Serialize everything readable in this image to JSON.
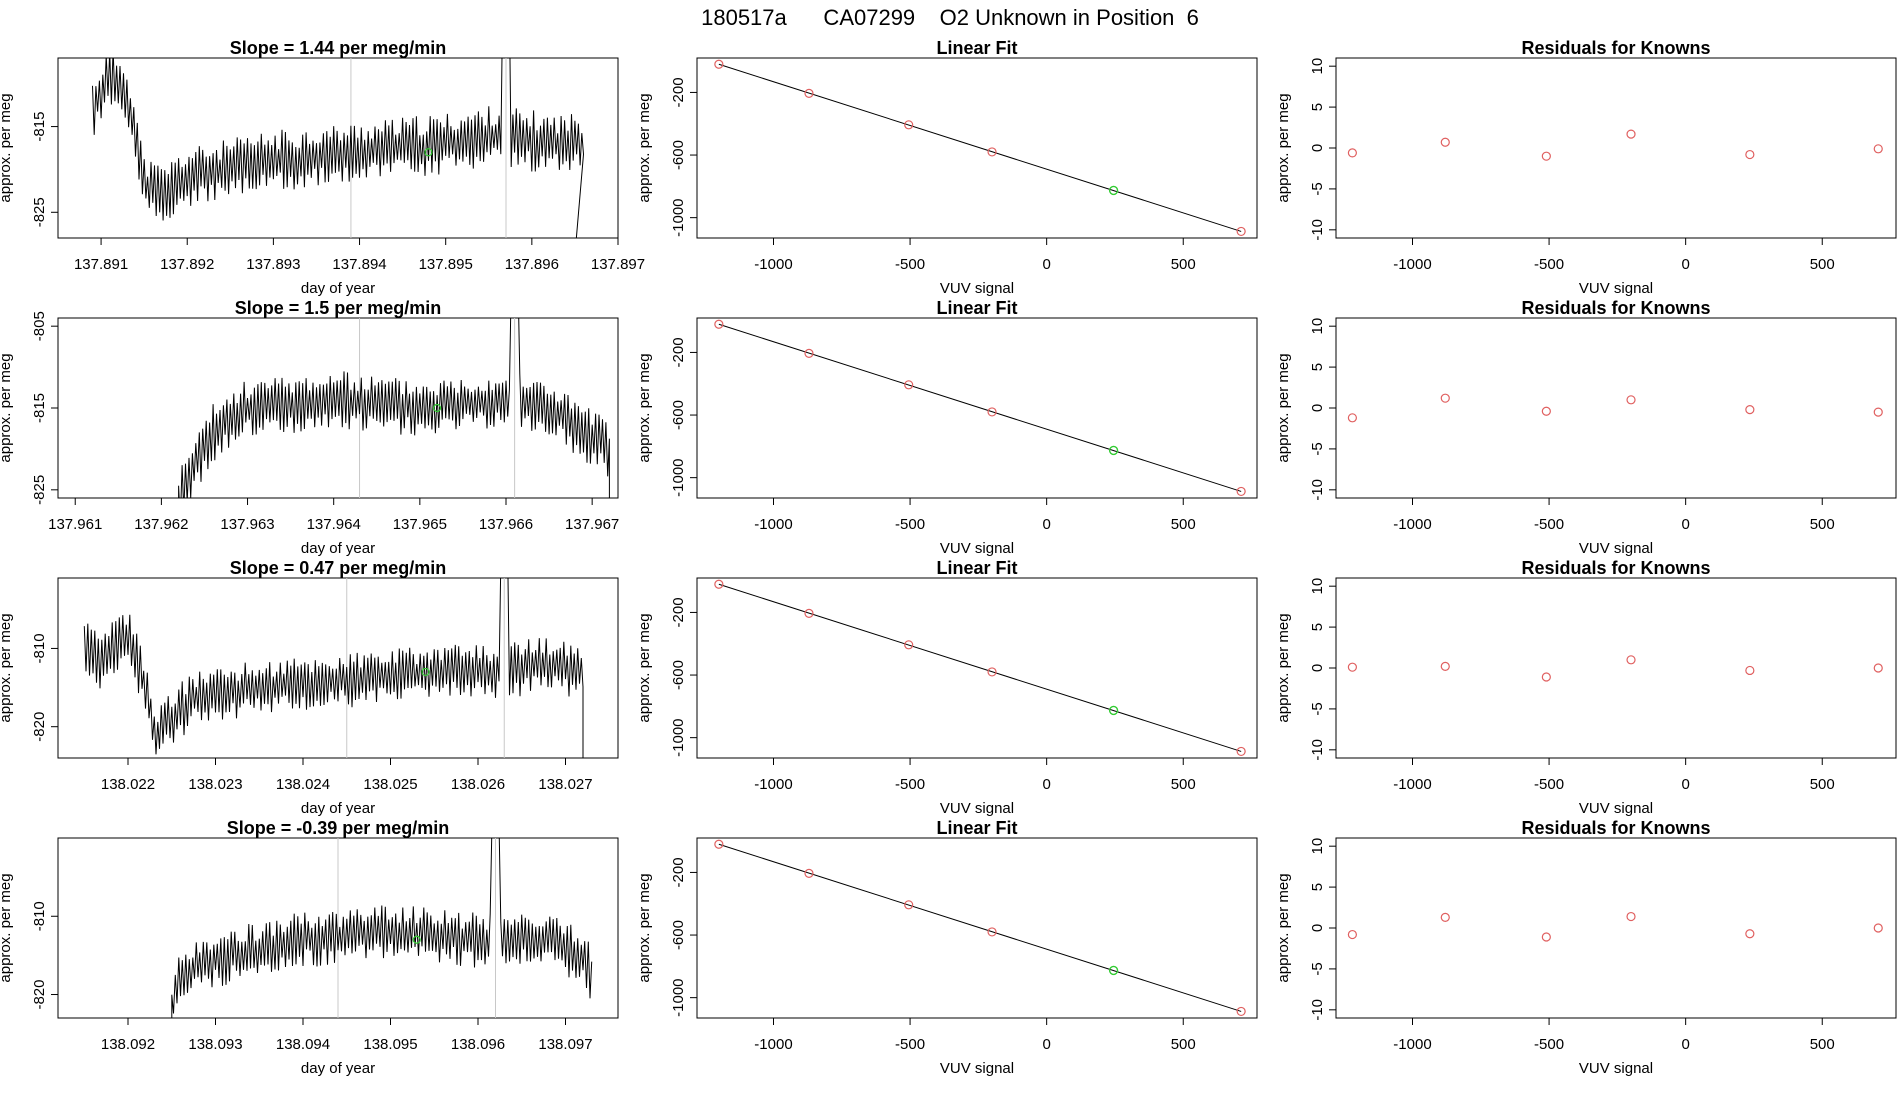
{
  "page_title": "180517a      CA07299    O2 Unknown in Position  6",
  "colors": {
    "trace": "#000000",
    "vline": "#c8c8c8",
    "known_point": "#e06060",
    "unknown_point": "#33cc33",
    "fit_line": "#000000"
  },
  "chart_data": [
    {
      "type": "line",
      "panel": "time-series",
      "title": "Slope =  1.44  per meg/min",
      "xlabel": "day of year",
      "ylabel": "approx. per meg",
      "xlim": [
        137.8905,
        137.897
      ],
      "ylim": [
        -828,
        -807
      ],
      "xticks": [
        "137.891",
        "137.892",
        "137.893",
        "137.894",
        "137.895",
        "137.896",
        "137.897"
      ],
      "yticks": [
        "-815",
        "-825"
      ],
      "vlines": [
        137.8939,
        137.8957
      ],
      "peak": {
        "x": 137.8957,
        "y": -801
      },
      "gap_segment": [
        [
          137.8951,
          -818
        ],
        [
          137.896,
          -819
        ],
        [
          137.8965,
          -819
        ]
      ],
      "drop": {
        "x": 137.8965,
        "to": -830
      },
      "unknown_point": {
        "x": 137.8948,
        "y": -818
      },
      "trace_shape": {
        "start": 137.8909,
        "end": 137.8966,
        "seed": 11,
        "segments": [
          [
            137.8909,
            -813
          ],
          [
            137.8911,
            -809
          ],
          [
            137.8913,
            -811
          ],
          [
            137.8914,
            -816
          ],
          [
            137.8915,
            -822
          ],
          [
            137.8917,
            -823
          ],
          [
            137.892,
            -821
          ],
          [
            137.893,
            -819
          ],
          [
            137.894,
            -818
          ],
          [
            137.895,
            -817
          ],
          [
            137.8956,
            -816
          ],
          [
            137.8962,
            -817
          ],
          [
            137.8965,
            -817
          ]
        ]
      }
    },
    {
      "type": "line",
      "panel": "time-series",
      "title": "Slope =  1.5  per meg/min",
      "xlabel": "day of year",
      "ylabel": "approx. per meg",
      "xlim": [
        137.9608,
        137.9673
      ],
      "ylim": [
        -826,
        -804
      ],
      "xticks": [
        "137.961",
        "137.962",
        "137.963",
        "137.964",
        "137.965",
        "137.966",
        "137.967"
      ],
      "yticks": [
        "-805",
        "-815",
        "-825"
      ],
      "vlines": [
        137.9643,
        137.9661
      ],
      "peak": {
        "x": 137.9661,
        "y": -800
      },
      "drop": {
        "x": 137.9672,
        "to": -830
      },
      "rise_from": {
        "x": 137.9622,
        "y": -828
      },
      "unknown_point": {
        "x": 137.9652,
        "y": -815
      },
      "trace_shape": {
        "start": 137.9622,
        "end": 137.9672,
        "seed": 23,
        "segments": [
          [
            137.9622,
            -826
          ],
          [
            137.9624,
            -822
          ],
          [
            137.9626,
            -818
          ],
          [
            137.963,
            -815
          ],
          [
            137.964,
            -814
          ],
          [
            137.965,
            -815
          ],
          [
            137.966,
            -814
          ],
          [
            137.9665,
            -815
          ],
          [
            137.9669,
            -818
          ],
          [
            137.9672,
            -820
          ]
        ]
      }
    },
    {
      "type": "line",
      "panel": "time-series",
      "title": "Slope =  0.47  per meg/min",
      "xlabel": "day of year",
      "ylabel": "approx. per meg",
      "xlim": [
        138.0212,
        138.0276
      ],
      "ylim": [
        -824,
        -801
      ],
      "xticks": [
        "138.022",
        "138.023",
        "138.024",
        "138.025",
        "138.026",
        "138.027"
      ],
      "yticks": [
        "-810",
        "-820"
      ],
      "vlines": [
        138.0245,
        138.0263
      ],
      "peak": {
        "x": 138.0263,
        "y": -799
      },
      "drop": {
        "x": 138.0272,
        "to": -828
      },
      "unknown_point": {
        "x": 138.0254,
        "y": -813
      },
      "trace_shape": {
        "start": 138.0215,
        "end": 138.0272,
        "seed": 37,
        "segments": [
          [
            138.0215,
            -810
          ],
          [
            138.0217,
            -812
          ],
          [
            138.0219,
            -809
          ],
          [
            138.022,
            -808
          ],
          [
            138.0222,
            -815
          ],
          [
            138.0223,
            -821
          ],
          [
            138.0225,
            -819
          ],
          [
            138.0228,
            -816
          ],
          [
            138.0235,
            -815
          ],
          [
            138.0245,
            -814
          ],
          [
            138.0255,
            -813
          ],
          [
            138.0262,
            -813
          ],
          [
            138.0268,
            -812
          ],
          [
            138.0271,
            -813
          ]
        ]
      }
    },
    {
      "type": "line",
      "panel": "time-series",
      "title": "Slope =  -0.39  per meg/min",
      "xlabel": "day of year",
      "ylabel": "approx. per meg",
      "xlim": [
        138.0912,
        138.0976
      ],
      "ylim": [
        -823,
        -800
      ],
      "xticks": [
        "138.092",
        "138.093",
        "138.094",
        "138.095",
        "138.096",
        "138.097"
      ],
      "yticks": [
        "-810",
        "-820"
      ],
      "vlines": [
        138.0944,
        138.0962
      ],
      "peak": {
        "x": 138.0962,
        "y": -798
      },
      "rise_from": {
        "x": 138.0925,
        "y": -826
      },
      "unknown_point": {
        "x": 138.0953,
        "y": -813
      },
      "trace_shape": {
        "start": 138.0925,
        "end": 138.0973,
        "seed": 53,
        "segments": [
          [
            138.0925,
            -822
          ],
          [
            138.0926,
            -818
          ],
          [
            138.0928,
            -816
          ],
          [
            138.0932,
            -815
          ],
          [
            138.094,
            -813
          ],
          [
            138.095,
            -812
          ],
          [
            138.096,
            -813
          ],
          [
            138.0968,
            -813
          ],
          [
            138.0972,
            -815
          ],
          [
            138.0973,
            -818
          ]
        ]
      }
    },
    {
      "type": "scatter",
      "panel": "linear-fit",
      "title": "Linear Fit",
      "xlabel": "VUV signal",
      "ylabel": "approx. per meg",
      "xlim": [
        -1280,
        770
      ],
      "ylim": [
        -1130,
        20
      ],
      "xticks": [
        -1000,
        -500,
        0,
        500
      ],
      "yticks": [
        -200,
        -600,
        -1000
      ],
      "fit": {
        "x1": -1200,
        "y1": -20,
        "x2": 712,
        "y2": -1088
      },
      "knowns": [
        [
          -1200,
          -20
        ],
        [
          -870,
          -206
        ],
        [
          -505,
          -407
        ],
        [
          -200,
          -580
        ],
        [
          712,
          -1088
        ]
      ],
      "unknown": [
        [
          245,
          -826
        ]
      ]
    },
    {
      "type": "scatter",
      "panel": "linear-fit",
      "title": "Linear Fit",
      "xlabel": "VUV signal",
      "ylabel": "approx. per meg",
      "xlim": [
        -1280,
        770
      ],
      "ylim": [
        -1130,
        20
      ],
      "xticks": [
        -1000,
        -500,
        0,
        500
      ],
      "yticks": [
        -200,
        -600,
        -1000
      ],
      "fit": {
        "x1": -1200,
        "y1": -20,
        "x2": 712,
        "y2": -1088
      },
      "knowns": [
        [
          -1200,
          -20
        ],
        [
          -870,
          -206
        ],
        [
          -505,
          -407
        ],
        [
          -200,
          -580
        ],
        [
          712,
          -1088
        ]
      ],
      "unknown": [
        [
          245,
          -826
        ]
      ]
    },
    {
      "type": "scatter",
      "panel": "linear-fit",
      "title": "Linear Fit",
      "xlabel": "VUV signal",
      "ylabel": "approx. per meg",
      "xlim": [
        -1280,
        770
      ],
      "ylim": [
        -1130,
        20
      ],
      "xticks": [
        -1000,
        -500,
        0,
        500
      ],
      "yticks": [
        -200,
        -600,
        -1000
      ],
      "fit": {
        "x1": -1200,
        "y1": -20,
        "x2": 712,
        "y2": -1088
      },
      "knowns": [
        [
          -1200,
          -20
        ],
        [
          -870,
          -206
        ],
        [
          -505,
          -407
        ],
        [
          -200,
          -580
        ],
        [
          712,
          -1088
        ]
      ],
      "unknown": [
        [
          245,
          -826
        ]
      ]
    },
    {
      "type": "scatter",
      "panel": "linear-fit",
      "title": "Linear Fit",
      "xlabel": "VUV signal",
      "ylabel": "approx. per meg",
      "xlim": [
        -1280,
        770
      ],
      "ylim": [
        -1130,
        20
      ],
      "xticks": [
        -1000,
        -500,
        0,
        500
      ],
      "yticks": [
        -200,
        -600,
        -1000
      ],
      "fit": {
        "x1": -1200,
        "y1": -20,
        "x2": 712,
        "y2": -1088
      },
      "knowns": [
        [
          -1200,
          -20
        ],
        [
          -870,
          -206
        ],
        [
          -505,
          -407
        ],
        [
          -200,
          -580
        ],
        [
          712,
          -1088
        ]
      ],
      "unknown": [
        [
          245,
          -826
        ]
      ]
    },
    {
      "type": "scatter",
      "panel": "residuals",
      "title": "Residuals for Knowns",
      "xlabel": "VUV signal",
      "ylabel": "approx. per meg",
      "xlim": [
        -1280,
        770
      ],
      "ylim": [
        -11,
        11
      ],
      "xticks": [
        -1000,
        -500,
        0,
        500
      ],
      "yticks": [
        10,
        5,
        0,
        -5,
        -10
      ],
      "points": [
        [
          -1220,
          -0.6
        ],
        [
          -880,
          0.7
        ],
        [
          -510,
          -1.0
        ],
        [
          -200,
          1.7
        ],
        [
          235,
          -0.8
        ],
        [
          705,
          -0.1
        ]
      ]
    },
    {
      "type": "scatter",
      "panel": "residuals",
      "title": "Residuals for Knowns",
      "xlabel": "VUV signal",
      "ylabel": "approx. per meg",
      "xlim": [
        -1280,
        770
      ],
      "ylim": [
        -11,
        11
      ],
      "xticks": [
        -1000,
        -500,
        0,
        500
      ],
      "yticks": [
        10,
        5,
        0,
        -5,
        -10
      ],
      "points": [
        [
          -1220,
          -1.2
        ],
        [
          -880,
          1.2
        ],
        [
          -510,
          -0.4
        ],
        [
          -200,
          1.0
        ],
        [
          235,
          -0.2
        ],
        [
          705,
          -0.5
        ]
      ]
    },
    {
      "type": "scatter",
      "panel": "residuals",
      "title": "Residuals for Knowns",
      "xlabel": "VUV signal",
      "ylabel": "approx. per meg",
      "xlim": [
        -1280,
        770
      ],
      "ylim": [
        -11,
        11
      ],
      "xticks": [
        -1000,
        -500,
        0,
        500
      ],
      "yticks": [
        10,
        5,
        0,
        -5,
        -10
      ],
      "points": [
        [
          -1220,
          0.1
        ],
        [
          -880,
          0.2
        ],
        [
          -510,
          -1.1
        ],
        [
          -200,
          1.0
        ],
        [
          235,
          -0.3
        ],
        [
          705,
          0.0
        ]
      ]
    },
    {
      "type": "scatter",
      "panel": "residuals",
      "title": "Residuals for Knowns",
      "xlabel": "VUV signal",
      "ylabel": "approx. per meg",
      "xlim": [
        -1280,
        770
      ],
      "ylim": [
        -11,
        11
      ],
      "xticks": [
        -1000,
        -500,
        0,
        500
      ],
      "yticks": [
        10,
        5,
        0,
        -5,
        -10
      ],
      "points": [
        [
          -1220,
          -0.8
        ],
        [
          -880,
          1.3
        ],
        [
          -510,
          -1.1
        ],
        [
          -200,
          1.4
        ],
        [
          235,
          -0.7
        ],
        [
          705,
          0.0
        ]
      ]
    }
  ]
}
